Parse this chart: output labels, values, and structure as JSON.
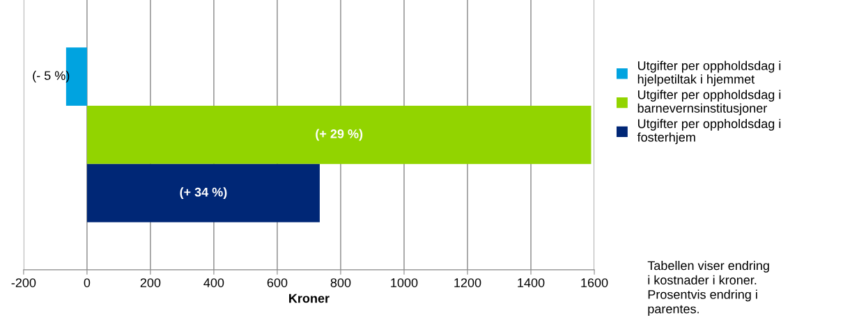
{
  "chart_data": {
    "type": "bar",
    "orientation": "horizontal",
    "xlabel": "Kroner",
    "categories": [
      null
    ],
    "series": [
      {
        "name": "Utgifter per oppholdsdag i\nhjelpetiltak i hjemmet",
        "color": "#00a3e0",
        "values": [
          -66
        ]
      },
      {
        "name": "Utgifter per oppholdsdag i\nbarnevernsinstitusjoner",
        "color": "#92d400",
        "values": [
          1590
        ]
      },
      {
        "name": "Utgifter per oppholdsdag i\nfosterhjem",
        "color": "#002776",
        "values": [
          734
        ]
      }
    ],
    "xlim": [
      -200,
      1600
    ],
    "xticks": [
      -200,
      0,
      200,
      400,
      600,
      800,
      1000,
      1200,
      1400,
      1600
    ],
    "grid": "x",
    "legend": "right",
    "annotations": [
      "(- 5 %)",
      "(+ 29 %)",
      "(+ 34 %)",
      "Tabellen viser endring\ni kostnader i kroner.\nProsentvis endring i\nparentes."
    ]
  }
}
